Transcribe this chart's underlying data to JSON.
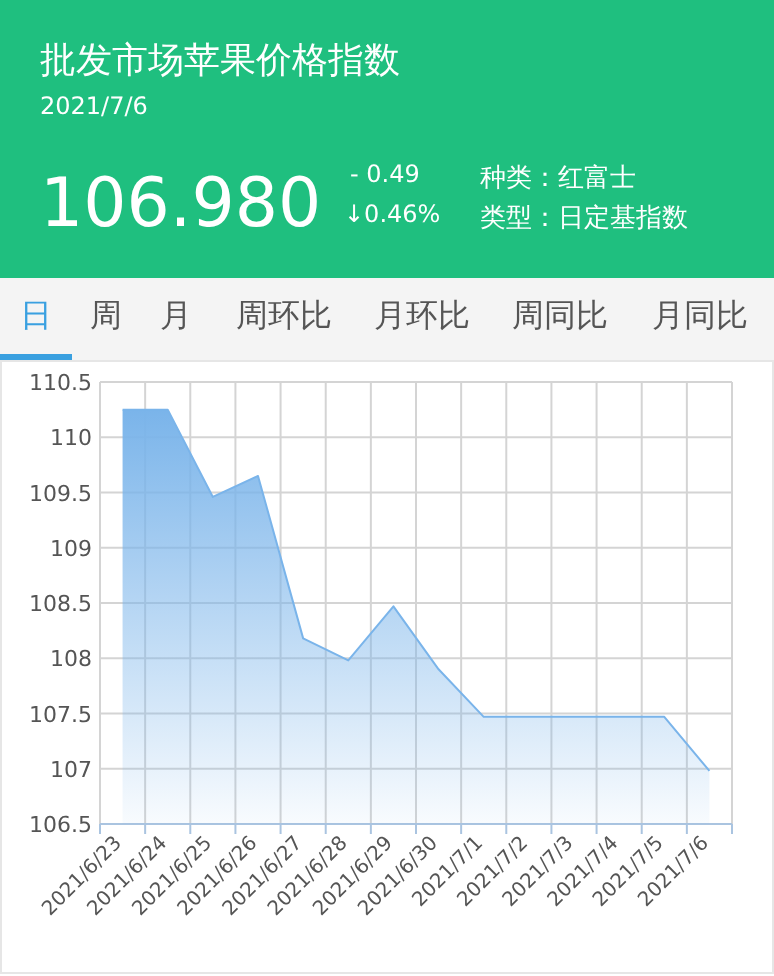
{
  "chart_data": {
    "type": "area",
    "title": "批发市场苹果价格指数",
    "subtitle": "2021/7/6",
    "annotations": [
      "106.980",
      "- 0.49",
      "↓0.46%",
      "种类：红富士",
      "类型：日定基指数",
      "日",
      "周",
      "月",
      "周环比",
      "月环比",
      "周同比",
      "月同比"
    ],
    "categories": [
      "2021/6/23",
      "2021/6/24",
      "2021/6/25",
      "2021/6/26",
      "2021/6/27",
      "2021/6/28",
      "2021/6/29",
      "2021/6/30",
      "2021/7/1",
      "2021/7/2",
      "2021/7/3",
      "2021/7/4",
      "2021/7/5",
      "2021/7/6"
    ],
    "values": [
      110.25,
      110.25,
      109.46,
      109.65,
      108.18,
      107.98,
      108.47,
      107.9,
      107.47,
      107.47,
      107.47,
      107.47,
      107.47,
      106.98
    ],
    "color": "#7ab4ea",
    "ylim": [
      106.5,
      110.5
    ],
    "yticks": [
      106.5,
      107,
      107.5,
      108,
      108.5,
      109,
      109.5,
      110,
      110.5
    ],
    "grid": true
  }
}
